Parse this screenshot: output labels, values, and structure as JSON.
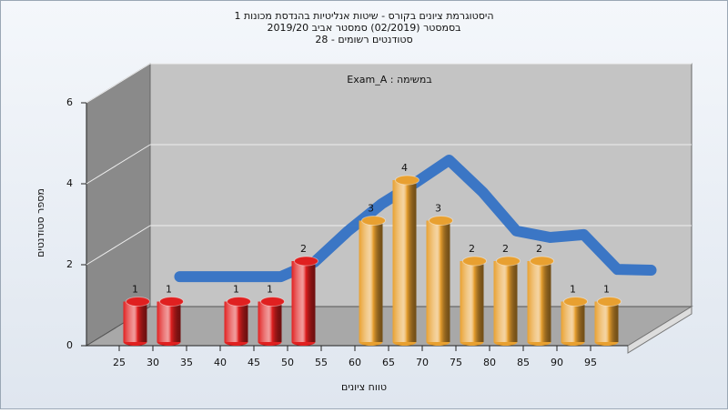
{
  "chart_data": {
    "type": "bar",
    "title_lines": [
      "היסטוגרמת ציונים בקורס - שיטות אנליטיות בהנדסת מכונות 1",
      "בסמסטר  (02/2019)  סמסטר אביב 2019/20",
      "סטודנטים רשומים - 28"
    ],
    "annotation": "Exam_A : במשימה",
    "xlabel": "טווח ציונים",
    "ylabel": "מספר סטודנטים",
    "categories": [
      "25",
      "30",
      "35",
      "40",
      "45",
      "50",
      "55",
      "60",
      "65",
      "70",
      "75",
      "80",
      "85",
      "90",
      "95"
    ],
    "values": [
      1,
      1,
      0,
      1,
      1,
      2,
      0,
      3,
      4,
      3,
      2,
      2,
      2,
      1,
      1
    ],
    "colors": [
      "#e02020",
      "#e02020",
      "#e02020",
      "#e02020",
      "#e02020",
      "#e02020",
      "#e02020",
      "#e8a030",
      "#e8a030",
      "#e8a030",
      "#e8a030",
      "#e8a030",
      "#e8a030",
      "#e8a030",
      "#e8a030"
    ],
    "trend": {
      "color": "#2f6fc4",
      "values": [
        0.94,
        0.94,
        0.94,
        0.94,
        1.3,
        2.07,
        2.74,
        3.26,
        3.82,
        3.03,
        2.07,
        1.91,
        1.98,
        1.12,
        1.1
      ]
    },
    "ylim": [
      0,
      6
    ],
    "yticks": [
      0,
      2,
      4,
      6
    ],
    "grid": true
  }
}
